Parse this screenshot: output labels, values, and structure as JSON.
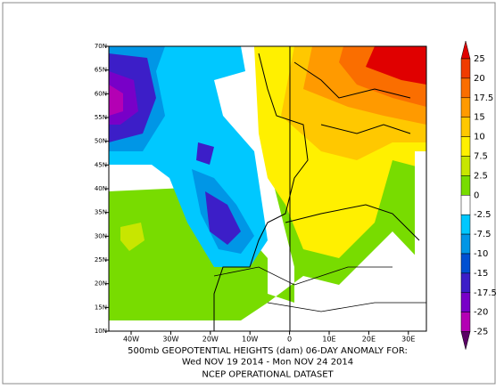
{
  "map": {
    "lon_labels": [
      "40W",
      "30W",
      "20W",
      "10W",
      "0",
      "10E",
      "20E",
      "30E"
    ],
    "lat_labels": [
      "70N",
      "65N",
      "60N",
      "55N",
      "50N",
      "45N",
      "40N",
      "35N",
      "30N",
      "25N",
      "20N",
      "15N",
      "10N"
    ],
    "caption": [
      "500mb GEOPOTENTIAL HEIGHTS (dam)   06-DAY ANOMALY FOR:",
      "Wed NOV 19 2014 - Mon NOV 24 2014",
      "NCEP OPERATIONAL DATASET"
    ],
    "colorbar": {
      "labels": [
        "25",
        "20",
        "17.5",
        "15",
        "10",
        "7.5",
        "2.5",
        "0",
        "-2.5",
        "-7.5",
        "-10",
        "-15",
        "-17.5",
        "-20",
        "-25"
      ],
      "colors": [
        "#e00000",
        "#f03c00",
        "#fa6e00",
        "#ff9a00",
        "#ffc800",
        "#fff000",
        "#c8e600",
        "#78dc00",
        "#ffffff",
        "#00c8ff",
        "#0096e6",
        "#0050d2",
        "#3c1ec8",
        "#7800c8",
        "#b400b4",
        "#5a0064"
      ]
    }
  }
}
